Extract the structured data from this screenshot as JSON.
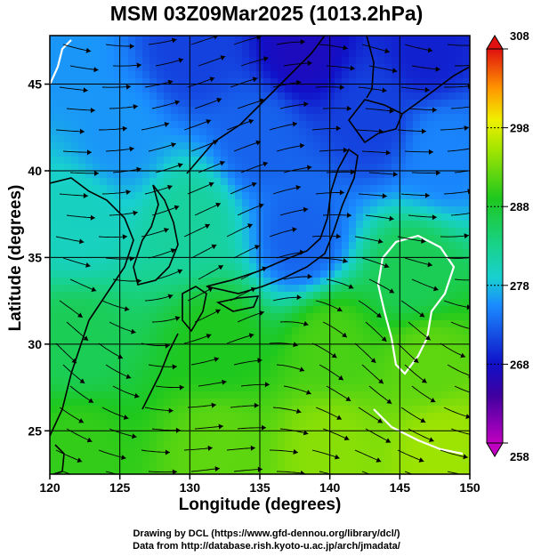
{
  "title": "MSM 03Z09Mar2025 (1013.2hPa)",
  "axes": {
    "xlabel": "Longitude (degrees)",
    "ylabel": "Latitude  (degrees)",
    "xlim": [
      120,
      150
    ],
    "ylim": [
      22.5,
      47.8
    ],
    "xticks": [
      120,
      125,
      130,
      135,
      140,
      145,
      150
    ],
    "yticks": [
      25,
      30,
      35,
      40,
      45
    ]
  },
  "colorbar": {
    "min": 258,
    "max": 308,
    "labels": [
      258,
      268,
      278,
      288,
      298,
      308
    ]
  },
  "credits": {
    "line1": "Drawing by DCL (https://www.gfd-dennou.org/library/dcl/)",
    "line2": "Data from http://database.rish.kyoto-u.ac.jp/arch/jmadata/"
  },
  "chart_data": {
    "type": "heatmap",
    "title": "MSM 03Z09Mar2025 (1013.2hPa)",
    "xlabel": "Longitude (degrees)",
    "ylabel": "Latitude  (degrees)",
    "xlim": [
      120,
      150
    ],
    "ylim": [
      22.5,
      47.8
    ],
    "color_range": [
      258,
      308
    ],
    "grid": true,
    "field_samples": [
      {
        "lon": 121,
        "lat": 47,
        "value": 276
      },
      {
        "lon": 130,
        "lat": 47,
        "value": 271
      },
      {
        "lon": 138,
        "lat": 47,
        "value": 267
      },
      {
        "lon": 147,
        "lat": 47,
        "value": 269
      },
      {
        "lon": 125,
        "lat": 42,
        "value": 276
      },
      {
        "lon": 135,
        "lat": 42,
        "value": 273
      },
      {
        "lon": 143,
        "lat": 43,
        "value": 271
      },
      {
        "lon": 148,
        "lat": 41,
        "value": 275
      },
      {
        "lon": 122,
        "lat": 37,
        "value": 280
      },
      {
        "lon": 130,
        "lat": 37,
        "value": 282
      },
      {
        "lon": 138,
        "lat": 36,
        "value": 273
      },
      {
        "lon": 146,
        "lat": 34,
        "value": 286
      },
      {
        "lon": 122,
        "lat": 30,
        "value": 286
      },
      {
        "lon": 132,
        "lat": 30,
        "value": 289
      },
      {
        "lon": 140,
        "lat": 30,
        "value": 291
      },
      {
        "lon": 147,
        "lat": 29,
        "value": 292
      },
      {
        "lon": 122,
        "lat": 24,
        "value": 290
      },
      {
        "lon": 132,
        "lat": 24,
        "value": 292
      },
      {
        "lon": 140,
        "lat": 24,
        "value": 294
      },
      {
        "lon": 148,
        "lat": 24,
        "value": 295
      }
    ]
  }
}
